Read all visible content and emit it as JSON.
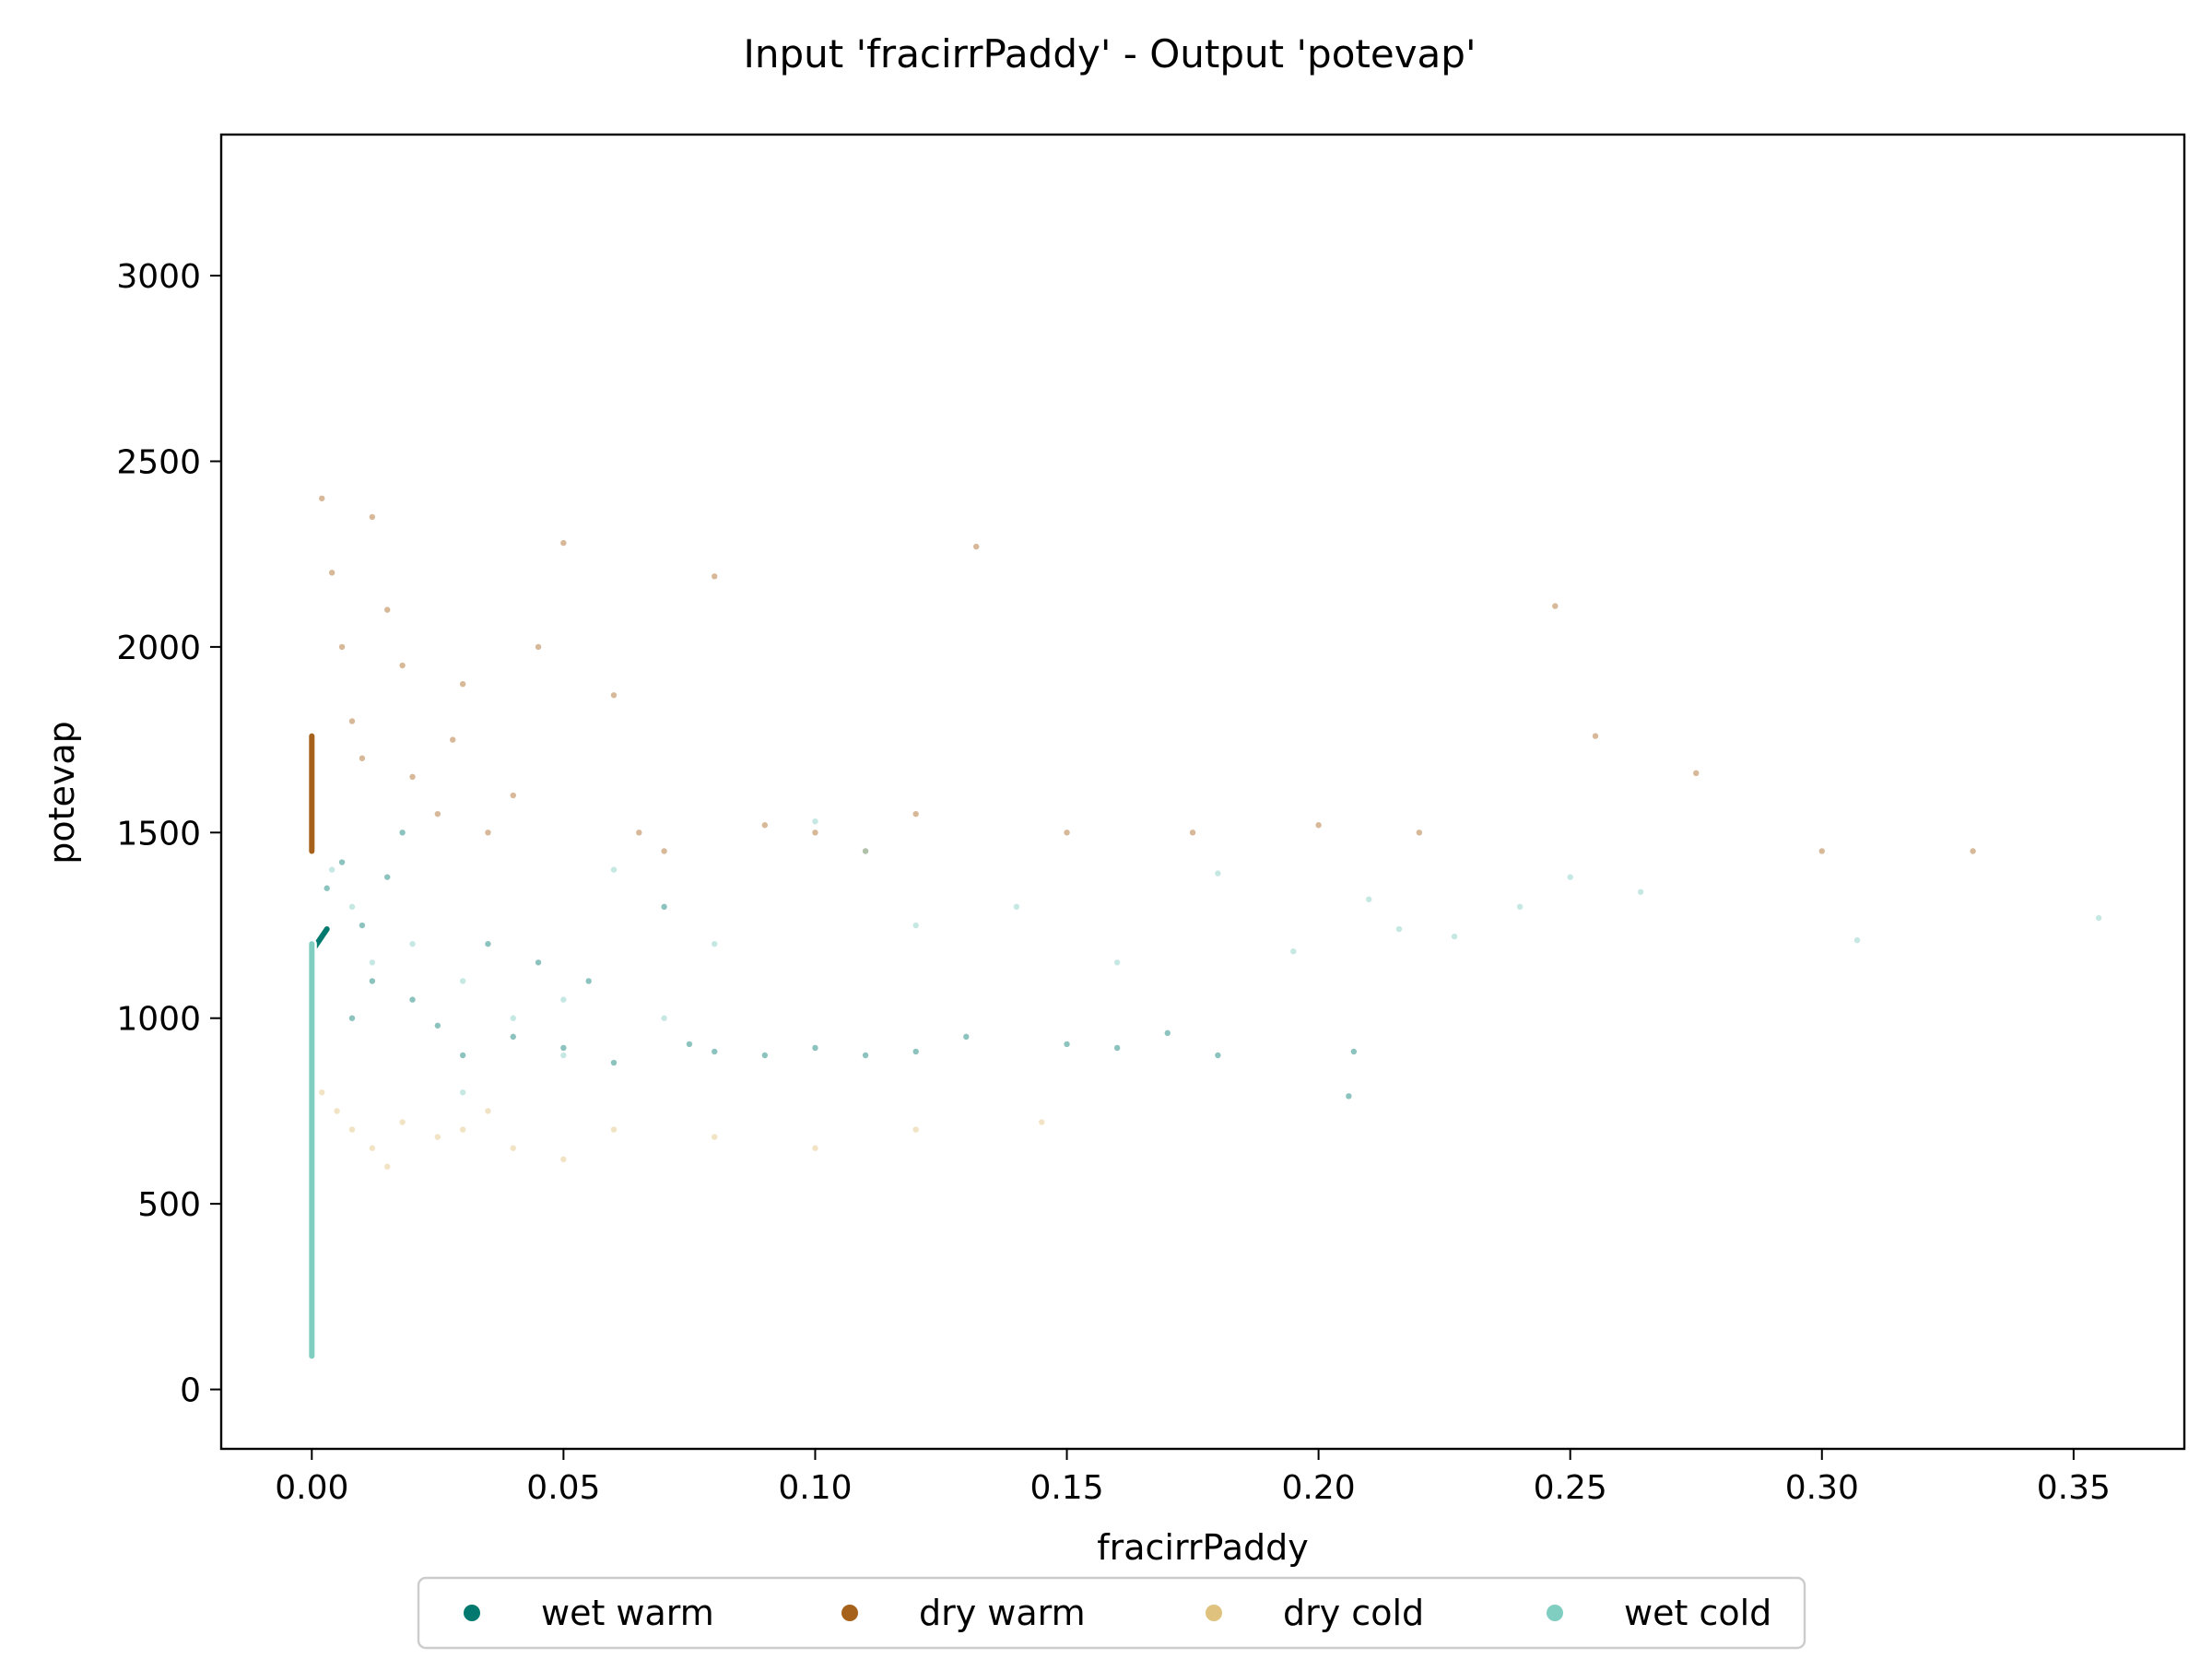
{
  "chart_data": {
    "type": "scatter",
    "title": "Input 'fracirrPaddy' - Output 'potevap'",
    "xlabel": "fracirrPaddy",
    "ylabel": "potevap",
    "xlim": [
      -0.018,
      0.372
    ],
    "ylim": [
      -160,
      3380
    ],
    "xticks": [
      0.0,
      0.05,
      0.1,
      0.15,
      0.2,
      0.25,
      0.3,
      0.35
    ],
    "xtick_labels": [
      "0.00",
      "0.05",
      "0.10",
      "0.15",
      "0.20",
      "0.25",
      "0.30",
      "0.35"
    ],
    "yticks": [
      0,
      500,
      1000,
      1500,
      2000,
      2500,
      3000
    ],
    "ytick_labels": [
      "0",
      "500",
      "1000",
      "1500",
      "2000",
      "2500",
      "3000"
    ],
    "grid": false,
    "legend_position": "bottom-center",
    "series": [
      {
        "name": "wet warm",
        "color": "#01796f",
        "points": [
          [
            0.003,
            1350
          ],
          [
            0.006,
            1420
          ],
          [
            0.01,
            1250
          ],
          [
            0.012,
            1100
          ],
          [
            0.015,
            1380
          ],
          [
            0.02,
            1050
          ],
          [
            0.025,
            980
          ],
          [
            0.03,
            900
          ],
          [
            0.035,
            1200
          ],
          [
            0.04,
            950
          ],
          [
            0.05,
            920
          ],
          [
            0.055,
            1100
          ],
          [
            0.06,
            880
          ],
          [
            0.07,
            1300
          ],
          [
            0.075,
            930
          ],
          [
            0.08,
            910
          ],
          [
            0.09,
            900
          ],
          [
            0.1,
            920
          ],
          [
            0.11,
            900
          ],
          [
            0.12,
            910
          ],
          [
            0.13,
            950
          ],
          [
            0.15,
            930
          ],
          [
            0.16,
            920
          ],
          [
            0.17,
            960
          ],
          [
            0.18,
            900
          ],
          [
            0.206,
            790
          ],
          [
            0.207,
            910
          ],
          [
            0.008,
            1000
          ],
          [
            0.018,
            1500
          ],
          [
            0.045,
            1150
          ]
        ],
        "median_segment": {
          "x": [
            0.0,
            0.003
          ],
          "y": [
            1180,
            1240
          ]
        }
      },
      {
        "name": "dry warm",
        "color": "#a6611a",
        "points": [
          [
            0.002,
            2400
          ],
          [
            0.004,
            2200
          ],
          [
            0.006,
            2000
          ],
          [
            0.008,
            1800
          ],
          [
            0.01,
            1700
          ],
          [
            0.015,
            2100
          ],
          [
            0.02,
            1650
          ],
          [
            0.025,
            1550
          ],
          [
            0.03,
            1900
          ],
          [
            0.035,
            1500
          ],
          [
            0.04,
            1600
          ],
          [
            0.045,
            2000
          ],
          [
            0.05,
            2280
          ],
          [
            0.06,
            1870
          ],
          [
            0.065,
            1500
          ],
          [
            0.07,
            1450
          ],
          [
            0.08,
            2190
          ],
          [
            0.09,
            1520
          ],
          [
            0.1,
            1500
          ],
          [
            0.11,
            1450
          ],
          [
            0.12,
            1550
          ],
          [
            0.132,
            2270
          ],
          [
            0.15,
            1500
          ],
          [
            0.175,
            1500
          ],
          [
            0.2,
            1520
          ],
          [
            0.22,
            1500
          ],
          [
            0.247,
            2110
          ],
          [
            0.255,
            1760
          ],
          [
            0.275,
            1660
          ],
          [
            0.3,
            1450
          ],
          [
            0.33,
            1450
          ],
          [
            0.012,
            2350
          ],
          [
            0.018,
            1950
          ],
          [
            0.028,
            1750
          ]
        ],
        "median_segment": {
          "x": [
            0.0,
            0.0
          ],
          "y": [
            1450,
            1760
          ]
        }
      },
      {
        "name": "dry cold",
        "color": "#dfc27d",
        "points": [
          [
            0.002,
            800
          ],
          [
            0.005,
            750
          ],
          [
            0.008,
            700
          ],
          [
            0.012,
            650
          ],
          [
            0.018,
            720
          ],
          [
            0.025,
            680
          ],
          [
            0.03,
            700
          ],
          [
            0.04,
            650
          ],
          [
            0.05,
            620
          ],
          [
            0.06,
            700
          ],
          [
            0.08,
            680
          ],
          [
            0.1,
            650
          ],
          [
            0.12,
            700
          ],
          [
            0.145,
            720
          ],
          [
            0.015,
            600
          ],
          [
            0.035,
            750
          ]
        ],
        "median_segment": {
          "x": [
            0.0,
            0.0
          ],
          "y": [
            620,
            760
          ]
        }
      },
      {
        "name": "wet cold",
        "color": "#80cdc1",
        "points": [
          [
            0.004,
            1400
          ],
          [
            0.008,
            1300
          ],
          [
            0.012,
            1150
          ],
          [
            0.02,
            1200
          ],
          [
            0.03,
            1100
          ],
          [
            0.04,
            1000
          ],
          [
            0.05,
            1050
          ],
          [
            0.06,
            1400
          ],
          [
            0.08,
            1200
          ],
          [
            0.1,
            1530
          ],
          [
            0.11,
            1450
          ],
          [
            0.12,
            1250
          ],
          [
            0.14,
            1300
          ],
          [
            0.16,
            1150
          ],
          [
            0.18,
            1390
          ],
          [
            0.195,
            1180
          ],
          [
            0.21,
            1320
          ],
          [
            0.216,
            1240
          ],
          [
            0.227,
            1220
          ],
          [
            0.24,
            1300
          ],
          [
            0.25,
            1380
          ],
          [
            0.264,
            1340
          ],
          [
            0.307,
            1210
          ],
          [
            0.355,
            1270
          ],
          [
            0.03,
            800
          ],
          [
            0.05,
            900
          ],
          [
            0.07,
            1000
          ]
        ],
        "median_segment": {
          "x": [
            0.0,
            0.0
          ],
          "y": [
            90,
            1200
          ]
        }
      }
    ]
  }
}
